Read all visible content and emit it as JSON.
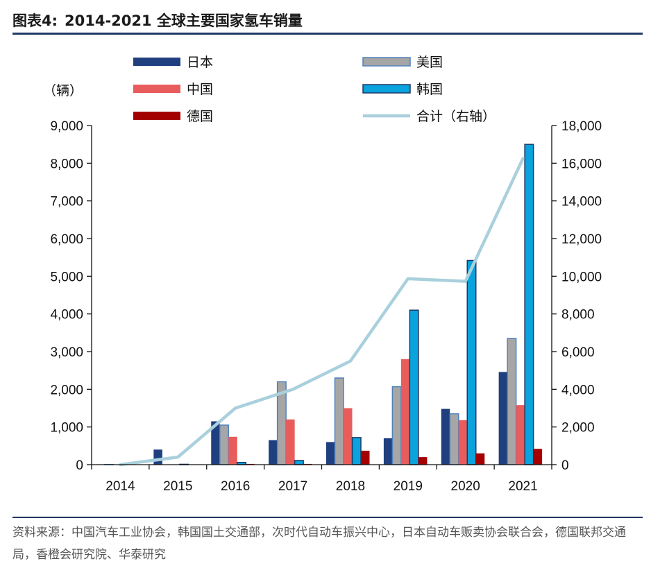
{
  "figure": {
    "label": "图表4:",
    "title": "2014-2021 全球主要国家氢车销量",
    "source": "资料来源：中国汽车工业协会，韩国国土交通部，次时代自动车振兴中心，日本自动车贩卖协会联合会，德国联邦交通局，香橙会研究院、华泰研究"
  },
  "chart_data": {
    "type": "bar",
    "title": "2014-2021 全球主要国家氢车销量",
    "ylabel": "（辆）",
    "ylim": [
      0,
      9000
    ],
    "y2lim": [
      0,
      18000
    ],
    "yticks": [
      "0",
      "1,000",
      "2,000",
      "3,000",
      "4,000",
      "5,000",
      "6,000",
      "7,000",
      "8,000",
      "9,000"
    ],
    "y2ticks": [
      "0",
      "2,000",
      "4,000",
      "6,000",
      "8,000",
      "10,000",
      "12,000",
      "14,000",
      "16,000",
      "18,000"
    ],
    "categories": [
      "2014",
      "2015",
      "2016",
      "2017",
      "2018",
      "2019",
      "2020",
      "2021"
    ],
    "series": [
      {
        "name": "日本",
        "axis": "left",
        "mark": "bar",
        "color": "#1f3f7f",
        "values": [
          10,
          400,
          1150,
          650,
          600,
          700,
          1480,
          2460
        ]
      },
      {
        "name": "美国",
        "axis": "left",
        "mark": "bar",
        "color": "#a6a6a6",
        "values": [
          5,
          0,
          1050,
          2200,
          2300,
          2070,
          1350,
          3350
        ]
      },
      {
        "name": "中国",
        "axis": "left",
        "mark": "bar",
        "color": "#e85c5c",
        "values": [
          0,
          10,
          740,
          1200,
          1500,
          2800,
          1180,
          1580
        ]
      },
      {
        "name": "韩国",
        "axis": "left",
        "mark": "bar",
        "color": "#0aa3dd",
        "values": [
          0,
          10,
          60,
          110,
          720,
          4100,
          5420,
          8500
        ]
      },
      {
        "name": "德国",
        "axis": "left",
        "mark": "bar",
        "color": "#a50000",
        "values": [
          0,
          0,
          20,
          20,
          370,
          200,
          300,
          420
        ]
      },
      {
        "name": "合计（右轴）",
        "axis": "right",
        "mark": "line",
        "color": "#a9d0dc",
        "values": [
          0,
          400,
          3000,
          4000,
          5500,
          9870,
          9730,
          16250
        ]
      }
    ],
    "legend": "top"
  }
}
